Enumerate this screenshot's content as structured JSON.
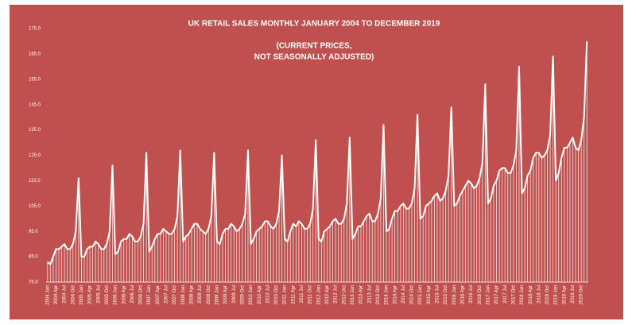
{
  "chart_data": {
    "type": "line",
    "title": "UK RETAIL SALES MONTHLY JANUARY 2004 TO DECEMBER 2019",
    "subtitle": [
      "(CURRENT PRICES,",
      "NOT SEASONALLY ADJUSTED)"
    ],
    "categories": [
      "2004 Jan",
      null,
      null,
      "2004 Apr",
      null,
      null,
      "2004 Jul",
      null,
      null,
      "2004 Oct",
      null,
      null,
      "2005 Jan",
      null,
      null,
      "2005 Apr",
      null,
      null,
      "2005 Jul",
      null,
      null,
      "2005 Oct",
      null,
      null,
      "2006 Jan",
      null,
      null,
      "2006 Apr",
      null,
      null,
      "2006 Jul",
      null,
      null,
      "2006 Oct",
      null,
      null,
      "2007 Jan",
      null,
      null,
      "2007 Apr",
      null,
      null,
      "2007 Jul",
      null,
      null,
      "2007 Oct",
      null,
      null,
      "2008 Jan",
      null,
      null,
      "2008 Apr",
      null,
      null,
      "2008 Jul",
      null,
      null,
      "2008 Oct",
      null,
      null,
      "2009 Jan",
      null,
      null,
      "2009 Apr",
      null,
      null,
      "2009 Jul",
      null,
      null,
      "2009 Oct",
      null,
      null,
      "2010 Jan",
      null,
      null,
      "2010 Apr",
      null,
      null,
      "2010 Jul",
      null,
      null,
      "2010 Oct",
      null,
      null,
      "2011 Jan",
      null,
      null,
      "2011 Apr",
      null,
      null,
      "2011 Jul",
      null,
      null,
      "2011 Oct",
      null,
      null,
      "2012 Jan",
      null,
      null,
      "2012 Apr",
      null,
      null,
      "2012 Jul",
      null,
      null,
      "2012 Oct",
      null,
      null,
      "2013 Jan",
      null,
      null,
      "2013 Apr",
      null,
      null,
      "2013 Jul",
      null,
      null,
      "2013 Oct",
      null,
      null,
      "2014 Jan",
      null,
      null,
      "2014 Apr",
      null,
      null,
      "2014 Jul",
      null,
      null,
      "2014 Oct",
      null,
      null,
      "2015 Jan",
      null,
      null,
      "2015 Apr",
      null,
      null,
      "2015 Jul",
      null,
      null,
      "2015 Oct",
      null,
      null,
      "2016 Jan",
      null,
      null,
      "2016 Apr",
      null,
      null,
      "2016 Jul",
      null,
      null,
      "2016 Oct",
      null,
      null,
      "2017 Jan",
      null,
      null,
      "2017 Apr",
      null,
      null,
      "2017 Jul",
      null,
      null,
      "2017 Oct",
      null,
      null,
      "2018 Jan",
      null,
      null,
      "2018 Apr",
      null,
      null,
      "2018 Jul",
      null,
      null,
      "2018 Oct",
      null,
      null,
      "2019 Jan",
      null,
      null,
      "2019 Apr",
      null,
      null,
      "2019 Jul",
      null,
      null,
      "2019 Oct",
      null,
      null
    ],
    "values": [
      83,
      82,
      85,
      88,
      88,
      89,
      90,
      88,
      88,
      90,
      95,
      116,
      85,
      85,
      88,
      89,
      89,
      91,
      90,
      88,
      88,
      90,
      95,
      121,
      86,
      87,
      91,
      92,
      92,
      94,
      93,
      91,
      91,
      93,
      98,
      126,
      87,
      89,
      92,
      94,
      94,
      96,
      95,
      94,
      94,
      96,
      101,
      127,
      91,
      93,
      94,
      96,
      98,
      98,
      96,
      95,
      94,
      96,
      101,
      126,
      91,
      90,
      94,
      96,
      96,
      98,
      97,
      95,
      96,
      98,
      102,
      127,
      90,
      92,
      95,
      96,
      97,
      99,
      99,
      97,
      96,
      98,
      103,
      125,
      92,
      91,
      95,
      98,
      97,
      99,
      98,
      96,
      96,
      98,
      104,
      131,
      92,
      91,
      95,
      96,
      97,
      99,
      100,
      98,
      98,
      100,
      106,
      132,
      92,
      94,
      97,
      97,
      99,
      101,
      102,
      99,
      99,
      102,
      108,
      137,
      95,
      96,
      100,
      103,
      103,
      105,
      106,
      104,
      104,
      106,
      112,
      141,
      100,
      101,
      105,
      106,
      107,
      109,
      110,
      107,
      108,
      111,
      117,
      144,
      105,
      106,
      109,
      111,
      113,
      115,
      114,
      112,
      113,
      116,
      122,
      153,
      106,
      108,
      113,
      115,
      119,
      120,
      120,
      118,
      118,
      121,
      127,
      160,
      110,
      112,
      117,
      119,
      124,
      126,
      126,
      124,
      125,
      127,
      133,
      164,
      115,
      118,
      124,
      128,
      128,
      130,
      132,
      128,
      127,
      131,
      140,
      170
    ],
    "color": "#ffffff",
    "ylim": [
      75,
      175
    ],
    "yticks": [
      {
        "value": 75,
        "label": "75.0"
      },
      {
        "value": 85,
        "label": "85.0"
      },
      {
        "value": 95,
        "label": "95.0"
      },
      {
        "value": 105,
        "label": "105.0"
      },
      {
        "value": 115,
        "label": "115.0"
      },
      {
        "value": 125,
        "label": "125.0"
      },
      {
        "value": 135,
        "label": "135.0"
      },
      {
        "value": 145,
        "label": "145.0"
      },
      {
        "value": 155,
        "label": "155.0"
      },
      {
        "value": 165,
        "label": "165.0"
      },
      {
        "value": 175,
        "label": "175.0"
      }
    ],
    "grid": false
  }
}
